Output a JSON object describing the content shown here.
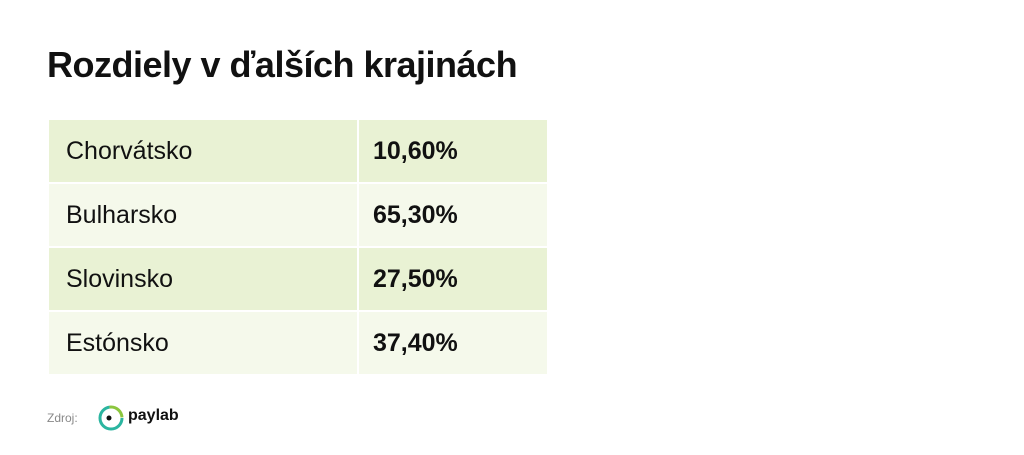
{
  "header": {
    "title": "Rozdiely v ďalších krajinách"
  },
  "table": {
    "rows": [
      [
        "Chorvátsko",
        "10,60%"
      ],
      [
        "Bulharsko",
        "65,30%"
      ],
      [
        "Slovinsko",
        "27,50%"
      ],
      [
        "Estónsko",
        "37,40%"
      ]
    ]
  },
  "footer": {
    "source_label": "Zdroj:",
    "logo_text": "paylab"
  }
}
